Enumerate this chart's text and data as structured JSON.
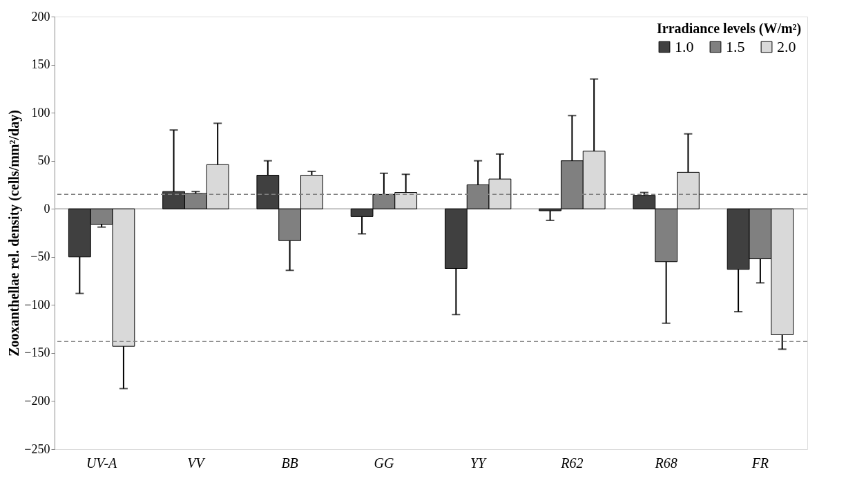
{
  "chart_data": {
    "type": "bar",
    "ylabel": "Zooxanthellae rel. density (cells/mm²/day)",
    "legend_title": "Irradiance levels (W/m²)",
    "categories": [
      "UV-A",
      "VV",
      "BB",
      "GG",
      "YY",
      "R62",
      "R68",
      "FR"
    ],
    "series": [
      {
        "name": "1.0",
        "color": "#404040",
        "values": [
          -50,
          18,
          35,
          -8,
          -62,
          -2,
          14,
          -63
        ],
        "errors": [
          [
            -88,
            -50
          ],
          [
            18,
            82
          ],
          [
            35,
            50
          ],
          [
            -26,
            -8
          ],
          [
            -110,
            -62
          ],
          [
            -12,
            -2
          ],
          [
            14,
            17
          ],
          [
            -107,
            -63
          ]
        ]
      },
      {
        "name": "1.5",
        "color": "#808080",
        "values": [
          -16,
          16,
          -33,
          15,
          25,
          50,
          -55,
          -52
        ],
        "errors": [
          [
            -19,
            -16
          ],
          [
            16,
            18
          ],
          [
            -64,
            -33
          ],
          [
            15,
            37
          ],
          [
            25,
            50
          ],
          [
            50,
            97
          ],
          [
            -119,
            -55
          ],
          [
            -77,
            -52
          ]
        ]
      },
      {
        "name": "2.0",
        "color": "#d9d9d9",
        "values": [
          -143,
          46,
          35,
          17,
          31,
          60,
          38,
          -131
        ],
        "errors": [
          [
            -187,
            -143
          ],
          [
            46,
            89
          ],
          [
            35,
            39
          ],
          [
            17,
            36
          ],
          [
            31,
            57
          ],
          [
            60,
            135
          ],
          [
            38,
            78
          ],
          [
            -146,
            -131
          ]
        ]
      }
    ],
    "ylim": [
      -250,
      200
    ],
    "yticks": [
      -250,
      -200,
      -150,
      -100,
      -50,
      0,
      50,
      100,
      150,
      200
    ],
    "ref_lines": [
      {
        "axis": "y",
        "value": 15,
        "color": "#808080",
        "line_style": "dashed"
      },
      {
        "axis": "y",
        "value": -138,
        "color": "#808080",
        "line_style": "dashed"
      }
    ],
    "legend": "top right"
  }
}
